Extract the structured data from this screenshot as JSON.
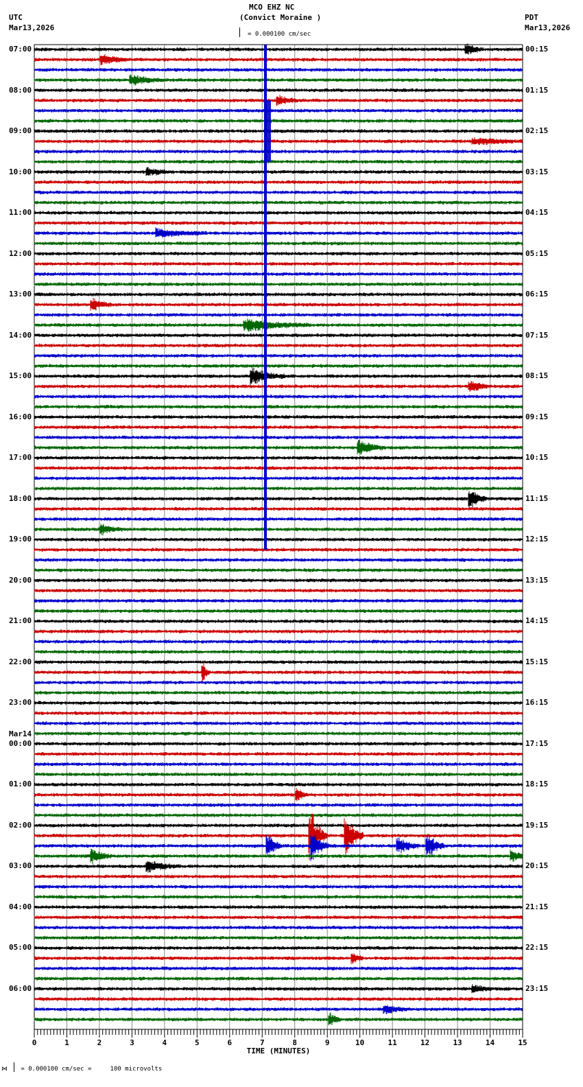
{
  "header": {
    "station": "MCO EHZ NC",
    "location": "(Convict Moraine )",
    "scale_text": "= 0.000100 cm/sec",
    "left_tz": "UTC",
    "left_date": "Mar13,2026",
    "right_tz": "PDT",
    "right_date": "Mar13,2026"
  },
  "footer": {
    "scale_text": "= 0.000100 cm/sec =     100 microvolts",
    "marker": "⋈"
  },
  "colors": {
    "trace_cycle": [
      "#000000",
      "#cc0000",
      "#0000cc",
      "#006600"
    ],
    "grid": "#888888"
  },
  "chart_data": {
    "type": "line",
    "title": "MCO EHZ NC (Convict Moraine )",
    "xlabel": "TIME (MINUTES)",
    "x_ticks": [
      "0",
      "1",
      "2",
      "3",
      "4",
      "5",
      "6",
      "7",
      "8",
      "9",
      "10",
      "11",
      "12",
      "13",
      "14",
      "15"
    ],
    "xlim": [
      0,
      15
    ],
    "traces_per_hour": 4,
    "trace_count": 96,
    "left_labels": [
      {
        "row": 0,
        "text": "07:00"
      },
      {
        "row": 4,
        "text": "08:00"
      },
      {
        "row": 8,
        "text": "09:00"
      },
      {
        "row": 12,
        "text": "10:00"
      },
      {
        "row": 16,
        "text": "11:00"
      },
      {
        "row": 20,
        "text": "12:00"
      },
      {
        "row": 24,
        "text": "13:00"
      },
      {
        "row": 28,
        "text": "14:00"
      },
      {
        "row": 32,
        "text": "15:00"
      },
      {
        "row": 36,
        "text": "16:00"
      },
      {
        "row": 40,
        "text": "17:00"
      },
      {
        "row": 44,
        "text": "18:00"
      },
      {
        "row": 48,
        "text": "19:00"
      },
      {
        "row": 52,
        "text": "20:00"
      },
      {
        "row": 56,
        "text": "21:00"
      },
      {
        "row": 60,
        "text": "22:00"
      },
      {
        "row": 64,
        "text": "23:00"
      },
      {
        "row": 68,
        "text": "00:00",
        "date": "Mar14"
      },
      {
        "row": 72,
        "text": "01:00"
      },
      {
        "row": 76,
        "text": "02:00"
      },
      {
        "row": 80,
        "text": "03:00"
      },
      {
        "row": 84,
        "text": "04:00"
      },
      {
        "row": 88,
        "text": "05:00"
      },
      {
        "row": 92,
        "text": "06:00"
      }
    ],
    "right_labels": [
      "00:15",
      "01:15",
      "02:15",
      "03:15",
      "04:15",
      "05:15",
      "06:15",
      "07:15",
      "08:15",
      "09:15",
      "10:15",
      "11:15",
      "12:15",
      "13:15",
      "14:15",
      "15:15",
      "16:15",
      "17:15",
      "18:15",
      "19:15",
      "20:15",
      "21:15",
      "22:15",
      "23:15"
    ],
    "events": [
      {
        "row": 0,
        "minute": 13.3,
        "amp": 8,
        "dur": 0.5
      },
      {
        "row": 1,
        "minute": 2.1,
        "amp": 8,
        "dur": 0.8
      },
      {
        "row": 3,
        "minute": 3.0,
        "amp": 7,
        "dur": 1.0
      },
      {
        "row": 5,
        "minute": 7.5,
        "amp": 7,
        "dur": 0.6
      },
      {
        "row": 9,
        "minute": 13.5,
        "amp": 5,
        "dur": 1.5
      },
      {
        "row": 12,
        "minute": 3.5,
        "amp": 7,
        "dur": 0.6
      },
      {
        "row": 18,
        "minute": 3.8,
        "amp": 6,
        "dur": 1.5
      },
      {
        "row": 25,
        "minute": 1.8,
        "amp": 9,
        "dur": 0.6
      },
      {
        "row": 27,
        "minute": 6.5,
        "amp": 9,
        "dur": 2.0
      },
      {
        "row": 32,
        "minute": 6.7,
        "amp": 12,
        "dur": 1.0
      },
      {
        "row": 33,
        "minute": 13.4,
        "amp": 8,
        "dur": 0.6
      },
      {
        "row": 39,
        "minute": 10.0,
        "amp": 10,
        "dur": 0.8
      },
      {
        "row": 44,
        "minute": 13.4,
        "amp": 16,
        "dur": 0.5
      },
      {
        "row": 47,
        "minute": 2.1,
        "amp": 7,
        "dur": 0.6
      },
      {
        "row": 61,
        "minute": 5.2,
        "amp": 14,
        "dur": 0.2
      },
      {
        "row": 73,
        "minute": 8.1,
        "amp": 8,
        "dur": 0.3
      },
      {
        "row": 77,
        "minute": 8.5,
        "amp": 40,
        "dur": 0.5
      },
      {
        "row": 77,
        "minute": 9.6,
        "amp": 30,
        "dur": 0.5
      },
      {
        "row": 78,
        "minute": 8.55,
        "amp": 20,
        "dur": 0.5
      },
      {
        "row": 78,
        "minute": 12.1,
        "amp": 18,
        "dur": 0.5
      },
      {
        "row": 78,
        "minute": 7.2,
        "amp": 15,
        "dur": 0.4
      },
      {
        "row": 78,
        "minute": 11.2,
        "amp": 12,
        "dur": 0.6
      },
      {
        "row": 79,
        "minute": 1.8,
        "amp": 10,
        "dur": 0.6
      },
      {
        "row": 79,
        "minute": 14.7,
        "amp": 7,
        "dur": 0.5
      },
      {
        "row": 80,
        "minute": 3.5,
        "amp": 8,
        "dur": 1.0
      },
      {
        "row": 89,
        "minute": 9.8,
        "amp": 7,
        "dur": 0.3
      },
      {
        "row": 92,
        "minute": 13.5,
        "amp": 6,
        "dur": 0.6
      },
      {
        "row": 94,
        "minute": 10.8,
        "amp": 6,
        "dur": 0.8
      },
      {
        "row": 95,
        "minute": 9.1,
        "amp": 10,
        "dur": 0.3
      }
    ],
    "big_event": {
      "minute": 7.1,
      "start_row": 0,
      "end_row": 49,
      "color": "#0000cc"
    }
  }
}
